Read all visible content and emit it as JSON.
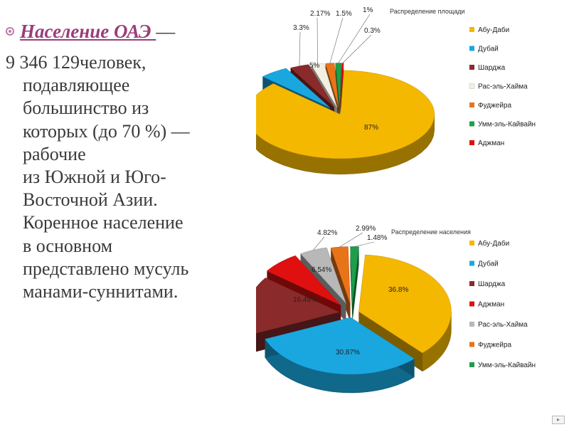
{
  "text": {
    "heading_title": "Население ОАЭ ",
    "heading_dash": "—",
    "body_lines": [
      "9 346 129человек,",
      "подавляющее",
      "большинство из",
      "которых (до 70 %) —",
      "рабочие",
      "из Южной и Юго-",
      "Восточной Азии.",
      "Коренное население",
      "в основном",
      "представлено мусуль",
      "манами-суннитами."
    ],
    "bullet_icon": "circle-bullet-icon"
  },
  "chart_data": [
    {
      "type": "pie",
      "title": "Распределение площади",
      "categories": [
        "Абу-Даби",
        "Дубай",
        "Шарджа",
        "Рас-эль-Хайма",
        "Фуджейра",
        "Умм-эль-Кайвайн",
        "Аджман"
      ],
      "values": [
        87,
        5,
        3.3,
        2.17,
        1.5,
        1,
        0.3
      ],
      "labels": [
        "87%",
        "5%",
        "3.3%",
        "2.17%",
        "1.5%",
        "1%",
        "0.3%"
      ],
      "colors": [
        "#f5b800",
        "#1aa7e0",
        "#8b2a2a",
        "#f3efe2",
        "#e8741a",
        "#1e9e4a",
        "#e01010"
      ],
      "legend_position": "right",
      "style": "3d-exploded"
    },
    {
      "type": "pie",
      "title": "Распределение населения",
      "categories": [
        "Абу-Даби",
        "Дубай",
        "Шарджа",
        "Аджман",
        "Рас-эль-Хайма",
        "Фуджейра",
        "Умм-эль-Кайвайн"
      ],
      "values": [
        36.8,
        30.87,
        16.49,
        6.54,
        4.82,
        2.99,
        1.48
      ],
      "labels": [
        "36.8%",
        "30.87%",
        "16.49%",
        "6.54%",
        "4.82%",
        "2.99%",
        "1.48%"
      ],
      "colors": [
        "#f5b800",
        "#1aa7e0",
        "#8b2a2a",
        "#e01010",
        "#b8b8b8",
        "#e8741a",
        "#1e9e4a"
      ],
      "legend_position": "right",
      "style": "3d-exploded"
    }
  ],
  "corner_icon": "nav-arrow-icon"
}
